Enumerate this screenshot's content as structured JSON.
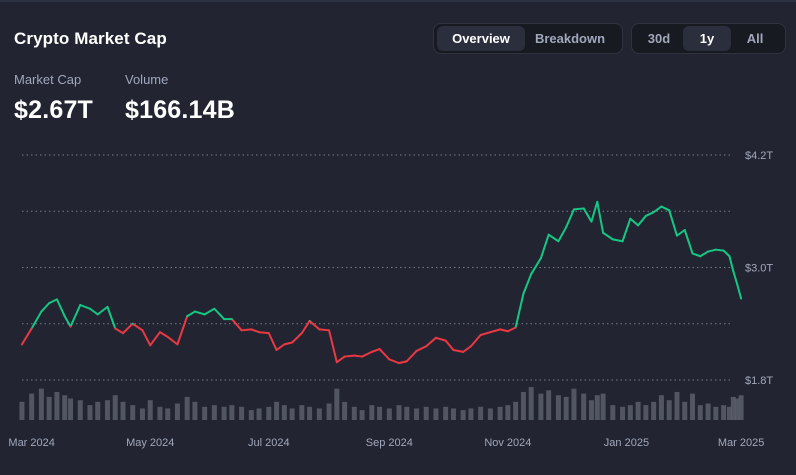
{
  "header": {
    "title": "Crypto Market Cap",
    "view_tabs": [
      {
        "label": "Overview",
        "active": true
      },
      {
        "label": "Breakdown",
        "active": false
      }
    ],
    "range_tabs": [
      {
        "label": "30d",
        "active": false
      },
      {
        "label": "1y",
        "active": true
      },
      {
        "label": "All",
        "active": false
      }
    ]
  },
  "stats": {
    "market_cap_label": "Market Cap",
    "market_cap_value": "$2.67T",
    "volume_label": "Volume",
    "volume_value": "$166.14B"
  },
  "colors": {
    "background": "#222531",
    "up": "#16c784",
    "down": "#ea3943",
    "volume_bar": "#5a5e6b",
    "grid": "#8a8f9e"
  },
  "chart_data": {
    "type": "line",
    "title": "",
    "xlabel": "",
    "ylabel": "",
    "y_unit": "USD (trillions)",
    "ylim": [
      1.8,
      4.2
    ],
    "y_ticks": [
      1.8,
      2.4,
      3.0,
      3.6,
      4.2
    ],
    "y_tick_labels": [
      {
        "value": 1.8,
        "label": "$1.8T"
      },
      {
        "value": 3.0,
        "label": "$3.0T"
      },
      {
        "value": 4.2,
        "label": "$4.2T"
      }
    ],
    "x_range": [
      "2024-02-24",
      "2025-03-03"
    ],
    "x_ticks": [
      {
        "date": "2024-03-01",
        "label": "Mar 2024"
      },
      {
        "date": "2024-05-01",
        "label": "May 2024"
      },
      {
        "date": "2024-07-01",
        "label": "Jul 2024"
      },
      {
        "date": "2024-09-01",
        "label": "Sep 2024"
      },
      {
        "date": "2024-11-01",
        "label": "Nov 2024"
      },
      {
        "date": "2025-01-01",
        "label": "Jan 2025"
      },
      {
        "date": "2025-03-01",
        "label": "Mar 2025"
      }
    ],
    "grid": true,
    "legend": "none",
    "baseline": 2.4,
    "series": [
      {
        "points": [
          [
            "2024-02-25",
            2.18
          ],
          [
            "2024-03-01",
            2.35
          ],
          [
            "2024-03-06",
            2.53
          ],
          [
            "2024-03-10",
            2.62
          ],
          [
            "2024-03-14",
            2.66
          ],
          [
            "2024-03-18",
            2.48
          ],
          [
            "2024-03-21",
            2.37
          ],
          [
            "2024-03-26",
            2.6
          ],
          [
            "2024-03-31",
            2.56
          ],
          [
            "2024-04-04",
            2.5
          ],
          [
            "2024-04-09",
            2.58
          ],
          [
            "2024-04-13",
            2.35
          ],
          [
            "2024-04-17",
            2.3
          ],
          [
            "2024-04-22",
            2.4
          ],
          [
            "2024-04-27",
            2.33
          ],
          [
            "2024-05-01",
            2.17
          ],
          [
            "2024-05-06",
            2.31
          ],
          [
            "2024-05-10",
            2.26
          ],
          [
            "2024-05-15",
            2.18
          ],
          [
            "2024-05-20",
            2.48
          ],
          [
            "2024-05-24",
            2.53
          ],
          [
            "2024-05-29",
            2.5
          ],
          [
            "2024-06-03",
            2.56
          ],
          [
            "2024-06-08",
            2.45
          ],
          [
            "2024-06-12",
            2.45
          ],
          [
            "2024-06-17",
            2.33
          ],
          [
            "2024-06-22",
            2.34
          ],
          [
            "2024-06-26",
            2.31
          ],
          [
            "2024-07-01",
            2.3
          ],
          [
            "2024-07-05",
            2.12
          ],
          [
            "2024-07-09",
            2.18
          ],
          [
            "2024-07-13",
            2.2
          ],
          [
            "2024-07-18",
            2.3
          ],
          [
            "2024-07-22",
            2.43
          ],
          [
            "2024-07-27",
            2.34
          ],
          [
            "2024-08-01",
            2.33
          ],
          [
            "2024-08-05",
            1.99
          ],
          [
            "2024-08-09",
            2.05
          ],
          [
            "2024-08-14",
            2.06
          ],
          [
            "2024-08-18",
            2.05
          ],
          [
            "2024-08-23",
            2.1
          ],
          [
            "2024-08-27",
            2.13
          ],
          [
            "2024-09-01",
            2.02
          ],
          [
            "2024-09-06",
            1.98
          ],
          [
            "2024-09-10",
            2.0
          ],
          [
            "2024-09-15",
            2.11
          ],
          [
            "2024-09-20",
            2.16
          ],
          [
            "2024-09-25",
            2.25
          ],
          [
            "2024-09-30",
            2.22
          ],
          [
            "2024-10-04",
            2.12
          ],
          [
            "2024-10-09",
            2.1
          ],
          [
            "2024-10-13",
            2.16
          ],
          [
            "2024-10-18",
            2.28
          ],
          [
            "2024-10-23",
            2.31
          ],
          [
            "2024-10-28",
            2.34
          ],
          [
            "2024-11-01",
            2.32
          ],
          [
            "2024-11-05",
            2.36
          ],
          [
            "2024-11-09",
            2.72
          ],
          [
            "2024-11-13",
            2.93
          ],
          [
            "2024-11-18",
            3.1
          ],
          [
            "2024-11-22",
            3.35
          ],
          [
            "2024-11-27",
            3.28
          ],
          [
            "2024-12-01",
            3.43
          ],
          [
            "2024-12-05",
            3.62
          ],
          [
            "2024-12-10",
            3.63
          ],
          [
            "2024-12-14",
            3.49
          ],
          [
            "2024-12-17",
            3.7
          ],
          [
            "2024-12-20",
            3.37
          ],
          [
            "2024-12-25",
            3.3
          ],
          [
            "2024-12-30",
            3.28
          ],
          [
            "2025-01-03",
            3.52
          ],
          [
            "2025-01-07",
            3.45
          ],
          [
            "2025-01-11",
            3.55
          ],
          [
            "2025-01-15",
            3.59
          ],
          [
            "2025-01-19",
            3.65
          ],
          [
            "2025-01-23",
            3.61
          ],
          [
            "2025-01-27",
            3.34
          ],
          [
            "2025-01-31",
            3.4
          ],
          [
            "2025-02-04",
            3.15
          ],
          [
            "2025-02-08",
            3.12
          ],
          [
            "2025-02-12",
            3.17
          ],
          [
            "2025-02-16",
            3.19
          ],
          [
            "2025-02-20",
            3.18
          ],
          [
            "2025-02-23",
            3.12
          ],
          [
            "2025-02-25",
            2.96
          ],
          [
            "2025-02-27",
            2.82
          ],
          [
            "2025-03-01",
            2.67
          ]
        ]
      }
    ],
    "volume": {
      "unit": "relative",
      "points": [
        [
          "2024-02-25",
          0.55
        ],
        [
          "2024-03-01",
          0.8
        ],
        [
          "2024-03-06",
          0.95
        ],
        [
          "2024-03-10",
          0.7
        ],
        [
          "2024-03-14",
          0.85
        ],
        [
          "2024-03-18",
          0.75
        ],
        [
          "2024-03-21",
          0.65
        ],
        [
          "2024-03-26",
          0.6
        ],
        [
          "2024-03-31",
          0.45
        ],
        [
          "2024-04-04",
          0.55
        ],
        [
          "2024-04-09",
          0.6
        ],
        [
          "2024-04-13",
          0.75
        ],
        [
          "2024-04-17",
          0.55
        ],
        [
          "2024-04-22",
          0.45
        ],
        [
          "2024-04-27",
          0.35
        ],
        [
          "2024-05-01",
          0.6
        ],
        [
          "2024-05-06",
          0.4
        ],
        [
          "2024-05-10",
          0.35
        ],
        [
          "2024-05-15",
          0.5
        ],
        [
          "2024-05-20",
          0.7
        ],
        [
          "2024-05-24",
          0.55
        ],
        [
          "2024-05-29",
          0.4
        ],
        [
          "2024-06-03",
          0.45
        ],
        [
          "2024-06-08",
          0.4
        ],
        [
          "2024-06-12",
          0.45
        ],
        [
          "2024-06-17",
          0.4
        ],
        [
          "2024-06-22",
          0.3
        ],
        [
          "2024-06-26",
          0.35
        ],
        [
          "2024-07-01",
          0.4
        ],
        [
          "2024-07-05",
          0.55
        ],
        [
          "2024-07-09",
          0.45
        ],
        [
          "2024-07-13",
          0.35
        ],
        [
          "2024-07-18",
          0.45
        ],
        [
          "2024-07-22",
          0.4
        ],
        [
          "2024-07-27",
          0.35
        ],
        [
          "2024-08-01",
          0.5
        ],
        [
          "2024-08-05",
          0.95
        ],
        [
          "2024-08-09",
          0.55
        ],
        [
          "2024-08-14",
          0.4
        ],
        [
          "2024-08-18",
          0.3
        ],
        [
          "2024-08-23",
          0.45
        ],
        [
          "2024-08-27",
          0.4
        ],
        [
          "2024-09-01",
          0.35
        ],
        [
          "2024-09-06",
          0.45
        ],
        [
          "2024-09-10",
          0.4
        ],
        [
          "2024-09-15",
          0.35
        ],
        [
          "2024-09-20",
          0.4
        ],
        [
          "2024-09-25",
          0.35
        ],
        [
          "2024-09-30",
          0.4
        ],
        [
          "2024-10-04",
          0.35
        ],
        [
          "2024-10-09",
          0.3
        ],
        [
          "2024-10-13",
          0.35
        ],
        [
          "2024-10-18",
          0.4
        ],
        [
          "2024-10-23",
          0.35
        ],
        [
          "2024-10-28",
          0.4
        ],
        [
          "2024-11-01",
          0.45
        ],
        [
          "2024-11-05",
          0.55
        ],
        [
          "2024-11-09",
          0.85
        ],
        [
          "2024-11-13",
          1.0
        ],
        [
          "2024-11-18",
          0.8
        ],
        [
          "2024-11-22",
          0.9
        ],
        [
          "2024-11-27",
          0.75
        ],
        [
          "2024-12-01",
          0.7
        ],
        [
          "2024-12-05",
          0.95
        ],
        [
          "2024-12-10",
          0.8
        ],
        [
          "2024-12-14",
          0.6
        ],
        [
          "2024-12-17",
          0.75
        ],
        [
          "2024-12-20",
          0.8
        ],
        [
          "2024-12-25",
          0.45
        ],
        [
          "2024-12-30",
          0.4
        ],
        [
          "2025-01-03",
          0.45
        ],
        [
          "2025-01-07",
          0.55
        ],
        [
          "2025-01-11",
          0.45
        ],
        [
          "2025-01-15",
          0.55
        ],
        [
          "2025-01-19",
          0.75
        ],
        [
          "2025-01-23",
          0.6
        ],
        [
          "2025-01-27",
          0.85
        ],
        [
          "2025-01-31",
          0.55
        ],
        [
          "2025-02-04",
          0.8
        ],
        [
          "2025-02-08",
          0.45
        ],
        [
          "2025-02-12",
          0.5
        ],
        [
          "2025-02-16",
          0.4
        ],
        [
          "2025-02-20",
          0.45
        ],
        [
          "2025-02-23",
          0.4
        ],
        [
          "2025-02-25",
          0.7
        ],
        [
          "2025-02-27",
          0.65
        ],
        [
          "2025-03-01",
          0.75
        ]
      ]
    }
  }
}
